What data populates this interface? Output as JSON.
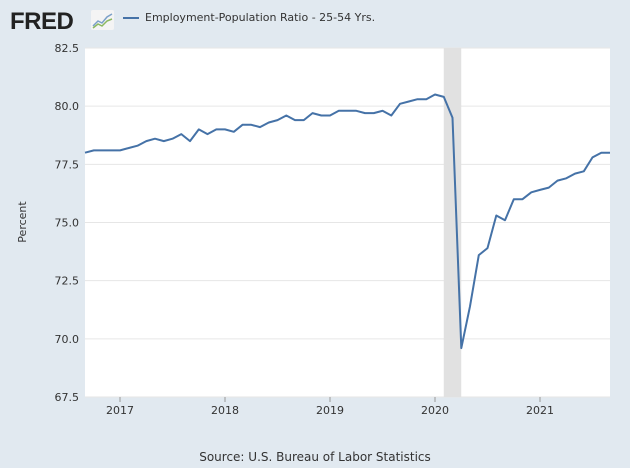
{
  "header": {
    "logo_text": "FRED",
    "logo_icon": "line-chart-icon"
  },
  "source": "Source: U.S. Bureau of Labor Statistics",
  "colors": {
    "series": "#4572a7",
    "recession": "#e1e1e1",
    "background": "#e1e9f0"
  },
  "chart_data": {
    "type": "line",
    "title": "",
    "xlabel": "",
    "ylabel": "Percent",
    "ylim": [
      67.5,
      82.5
    ],
    "yticks": [
      "67.5",
      "70.0",
      "72.5",
      "75.0",
      "77.5",
      "80.0",
      "82.5"
    ],
    "xticks": [
      "2017",
      "2018",
      "2019",
      "2020",
      "2021"
    ],
    "x_start": "2016-09",
    "x_end": "2021-09",
    "frequency": "monthly",
    "legend": "top-left",
    "grid": true,
    "recession_shading": {
      "start": "2020-02",
      "end": "2020-04"
    },
    "series": [
      {
        "name": "Employment-Population Ratio - 25-54 Yrs.",
        "values": [
          78.0,
          78.1,
          78.1,
          78.1,
          78.1,
          78.2,
          78.3,
          78.5,
          78.6,
          78.5,
          78.6,
          78.8,
          78.5,
          79.0,
          78.8,
          79.0,
          79.0,
          78.9,
          79.2,
          79.2,
          79.1,
          79.3,
          79.4,
          79.6,
          79.4,
          79.4,
          79.7,
          79.6,
          79.6,
          79.8,
          79.8,
          79.8,
          79.7,
          79.7,
          79.8,
          79.6,
          80.1,
          80.2,
          80.3,
          80.3,
          80.5,
          80.4,
          79.5,
          69.6,
          71.4,
          73.6,
          73.9,
          75.3,
          75.1,
          76.0,
          76.0,
          76.3,
          76.4,
          76.5,
          76.8,
          76.9,
          77.1,
          77.2,
          77.8,
          78.0,
          78.0
        ]
      }
    ]
  }
}
